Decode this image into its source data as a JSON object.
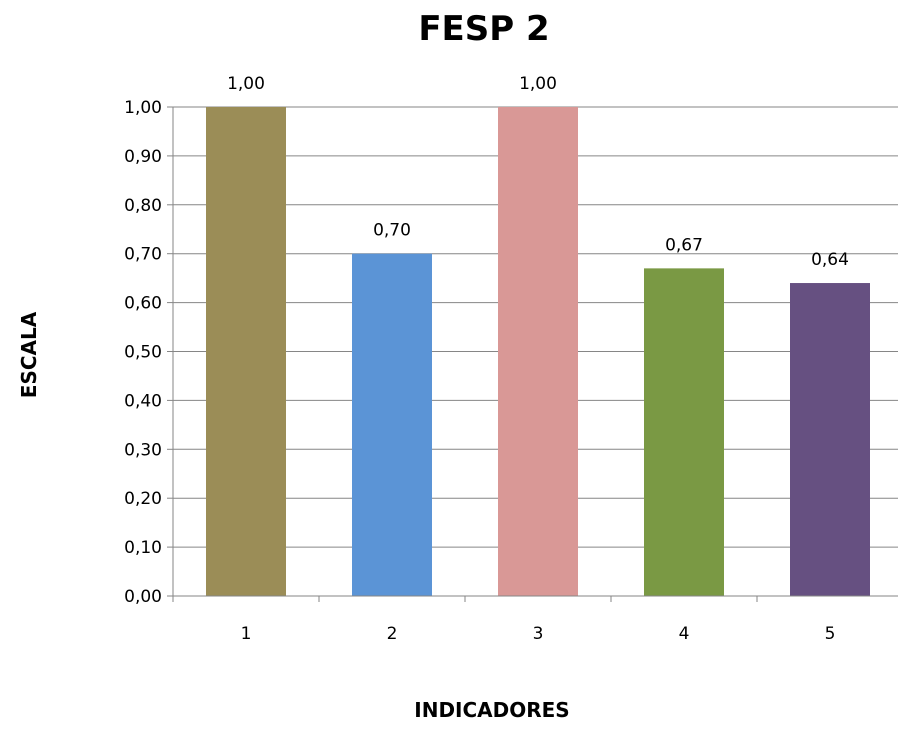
{
  "chart_data": {
    "type": "bar",
    "title": "FESP 2",
    "xlabel": "INDICADORES",
    "ylabel": "ESCALA",
    "categories": [
      "1",
      "2",
      "3",
      "4",
      "5"
    ],
    "values": [
      1.0,
      0.7,
      1.0,
      0.67,
      0.64
    ],
    "data_labels": [
      "1,00",
      "0,70",
      "1,00",
      "0,67",
      "0,64"
    ],
    "bar_colors": [
      "#9b8d57",
      "#5b94d6",
      "#d99896",
      "#7a9944",
      "#665081"
    ],
    "ylim": [
      0,
      1
    ],
    "yticks": [
      0,
      0.1,
      0.2,
      0.3,
      0.4,
      0.5,
      0.6,
      0.7,
      0.8,
      0.9,
      1.0
    ],
    "ytick_labels": [
      "0,00",
      "0,10",
      "0,20",
      "0,30",
      "0,40",
      "0,50",
      "0,60",
      "0,70",
      "0,80",
      "0,90",
      "1,00"
    ],
    "grid": true,
    "legend": "none"
  }
}
